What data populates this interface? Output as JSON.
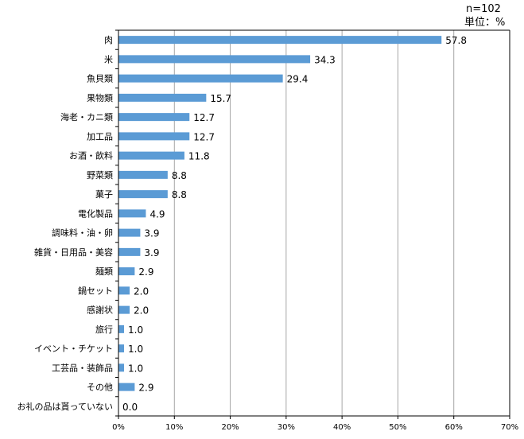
{
  "notes": {
    "sample_size": "n=102",
    "unit": "単位：%"
  },
  "chart_data": {
    "type": "bar",
    "orientation": "horizontal",
    "title": "",
    "xlabel": "",
    "ylabel": "",
    "xlim": [
      0,
      70
    ],
    "x_ticks": [
      0,
      10,
      20,
      30,
      40,
      50,
      60,
      70
    ],
    "x_tick_labels": [
      "0%",
      "10%",
      "20%",
      "30%",
      "40%",
      "50%",
      "60%",
      "70%"
    ],
    "grid": true,
    "legend": "none",
    "bar_color": "#5b9bd5",
    "grid_color": "#a6a6a6",
    "categories": [
      "肉",
      "米",
      "魚貝類",
      "果物類",
      "海老・カニ類",
      "加工品",
      "お酒・飲料",
      "野菜類",
      "菓子",
      "電化製品",
      "調味料・油・卵",
      "雑貨・日用品・美容",
      "麺類",
      "鍋セット",
      "感謝状",
      "旅行",
      "イベント・チケット",
      "工芸品・装飾品",
      "その他",
      "お礼の品は貰っていない"
    ],
    "values": [
      57.8,
      34.3,
      29.4,
      15.7,
      12.7,
      12.7,
      11.8,
      8.8,
      8.8,
      4.9,
      3.9,
      3.9,
      2.9,
      2.0,
      2.0,
      1.0,
      1.0,
      1.0,
      2.9,
      0.0
    ],
    "data_labels": [
      "57.8",
      "34.3",
      "29.4",
      "15.7",
      "12.7",
      "12.7",
      "11.8",
      "8.8",
      "8.8",
      "4.9",
      "3.9",
      "3.9",
      "2.9",
      "2.0",
      "2.0",
      "1.0",
      "1.0",
      "1.0",
      "2.9",
      "0.0"
    ]
  }
}
